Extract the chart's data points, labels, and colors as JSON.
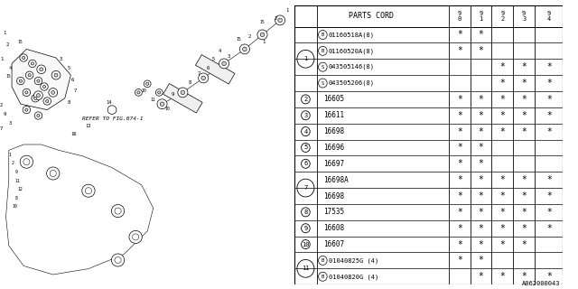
{
  "bg_color": "#ffffff",
  "title": "PARTS CORD",
  "columns": [
    "9\n0",
    "9\n1",
    "9\n2",
    "9\n3",
    "9\n4"
  ],
  "rows": [
    {
      "ref": "1",
      "prefix": "B",
      "code": "01160518A(8)",
      "marks": [
        true,
        true,
        false,
        false,
        false
      ]
    },
    {
      "ref": "1",
      "prefix": "B",
      "code": "01160520A(8)",
      "marks": [
        true,
        true,
        false,
        false,
        false
      ]
    },
    {
      "ref": "1",
      "prefix": "S",
      "code": "043505146(8)",
      "marks": [
        false,
        false,
        true,
        true,
        true
      ]
    },
    {
      "ref": "1",
      "prefix": "S",
      "code": "043505206(8)",
      "marks": [
        false,
        false,
        true,
        true,
        true
      ]
    },
    {
      "ref": "2",
      "prefix": "",
      "code": "16605",
      "marks": [
        true,
        true,
        true,
        true,
        true
      ]
    },
    {
      "ref": "3",
      "prefix": "",
      "code": "16611",
      "marks": [
        true,
        true,
        true,
        true,
        true
      ]
    },
    {
      "ref": "4",
      "prefix": "",
      "code": "16698",
      "marks": [
        true,
        true,
        true,
        true,
        true
      ]
    },
    {
      "ref": "5",
      "prefix": "",
      "code": "16696",
      "marks": [
        true,
        true,
        false,
        false,
        false
      ]
    },
    {
      "ref": "6",
      "prefix": "",
      "code": "16697",
      "marks": [
        true,
        true,
        false,
        false,
        false
      ]
    },
    {
      "ref": "7",
      "prefix": "",
      "code": "16698A",
      "marks": [
        true,
        true,
        true,
        true,
        true
      ]
    },
    {
      "ref": "7",
      "prefix": "",
      "code": "16698",
      "marks": [
        true,
        true,
        true,
        true,
        true
      ]
    },
    {
      "ref": "8",
      "prefix": "",
      "code": "17535",
      "marks": [
        true,
        true,
        true,
        true,
        true
      ]
    },
    {
      "ref": "9",
      "prefix": "",
      "code": "16608",
      "marks": [
        true,
        true,
        true,
        true,
        true
      ]
    },
    {
      "ref": "10",
      "prefix": "",
      "code": "16607",
      "marks": [
        true,
        true,
        true,
        true,
        false
      ]
    },
    {
      "ref": "11",
      "prefix": "B",
      "code": "01040825G (4)",
      "marks": [
        true,
        true,
        false,
        false,
        false
      ]
    },
    {
      "ref": "11",
      "prefix": "B",
      "code": "01040820G (4)",
      "marks": [
        false,
        true,
        true,
        true,
        true
      ]
    }
  ],
  "footer": "A062000043",
  "diagram_ref": "REFER TO FIG.074-1"
}
